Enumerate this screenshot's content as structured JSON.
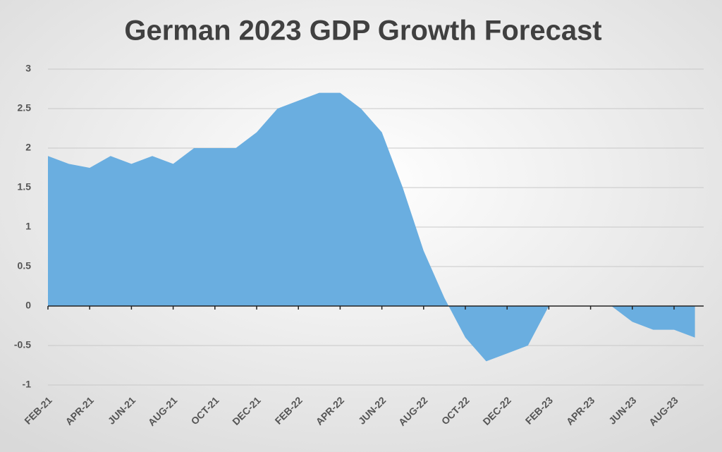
{
  "chart_data": {
    "type": "area",
    "title": "German 2023 GDP Growth Forecast",
    "categories": [
      "FEB-21",
      null,
      "APR-21",
      null,
      "JUN-21",
      null,
      "AUG-21",
      null,
      "OCT-21",
      null,
      "DEC-21",
      null,
      "FEB-22",
      null,
      "APR-22",
      null,
      "JUN-22",
      null,
      "AUG-22",
      null,
      "OCT-22",
      null,
      "DEC-22",
      null,
      "FEB-23",
      null,
      "APR-23",
      null,
      "JUN-23",
      null,
      "AUG-23",
      null
    ],
    "values": [
      1.9,
      1.8,
      1.75,
      1.9,
      1.8,
      1.9,
      1.8,
      2.0,
      2.0,
      2.0,
      2.2,
      2.5,
      2.6,
      2.7,
      2.7,
      2.5,
      2.2,
      1.5,
      0.7,
      0.1,
      -0.4,
      -0.7,
      -0.6,
      -0.5,
      0,
      0,
      0,
      0,
      -0.2,
      -0.3,
      -0.3,
      -0.4
    ],
    "color": "#6aaee0",
    "ylim": [
      -1,
      3
    ],
    "yticks": [
      -1,
      -0.5,
      0,
      0.5,
      1,
      1.5,
      2,
      2.5,
      3
    ],
    "grid": true
  }
}
